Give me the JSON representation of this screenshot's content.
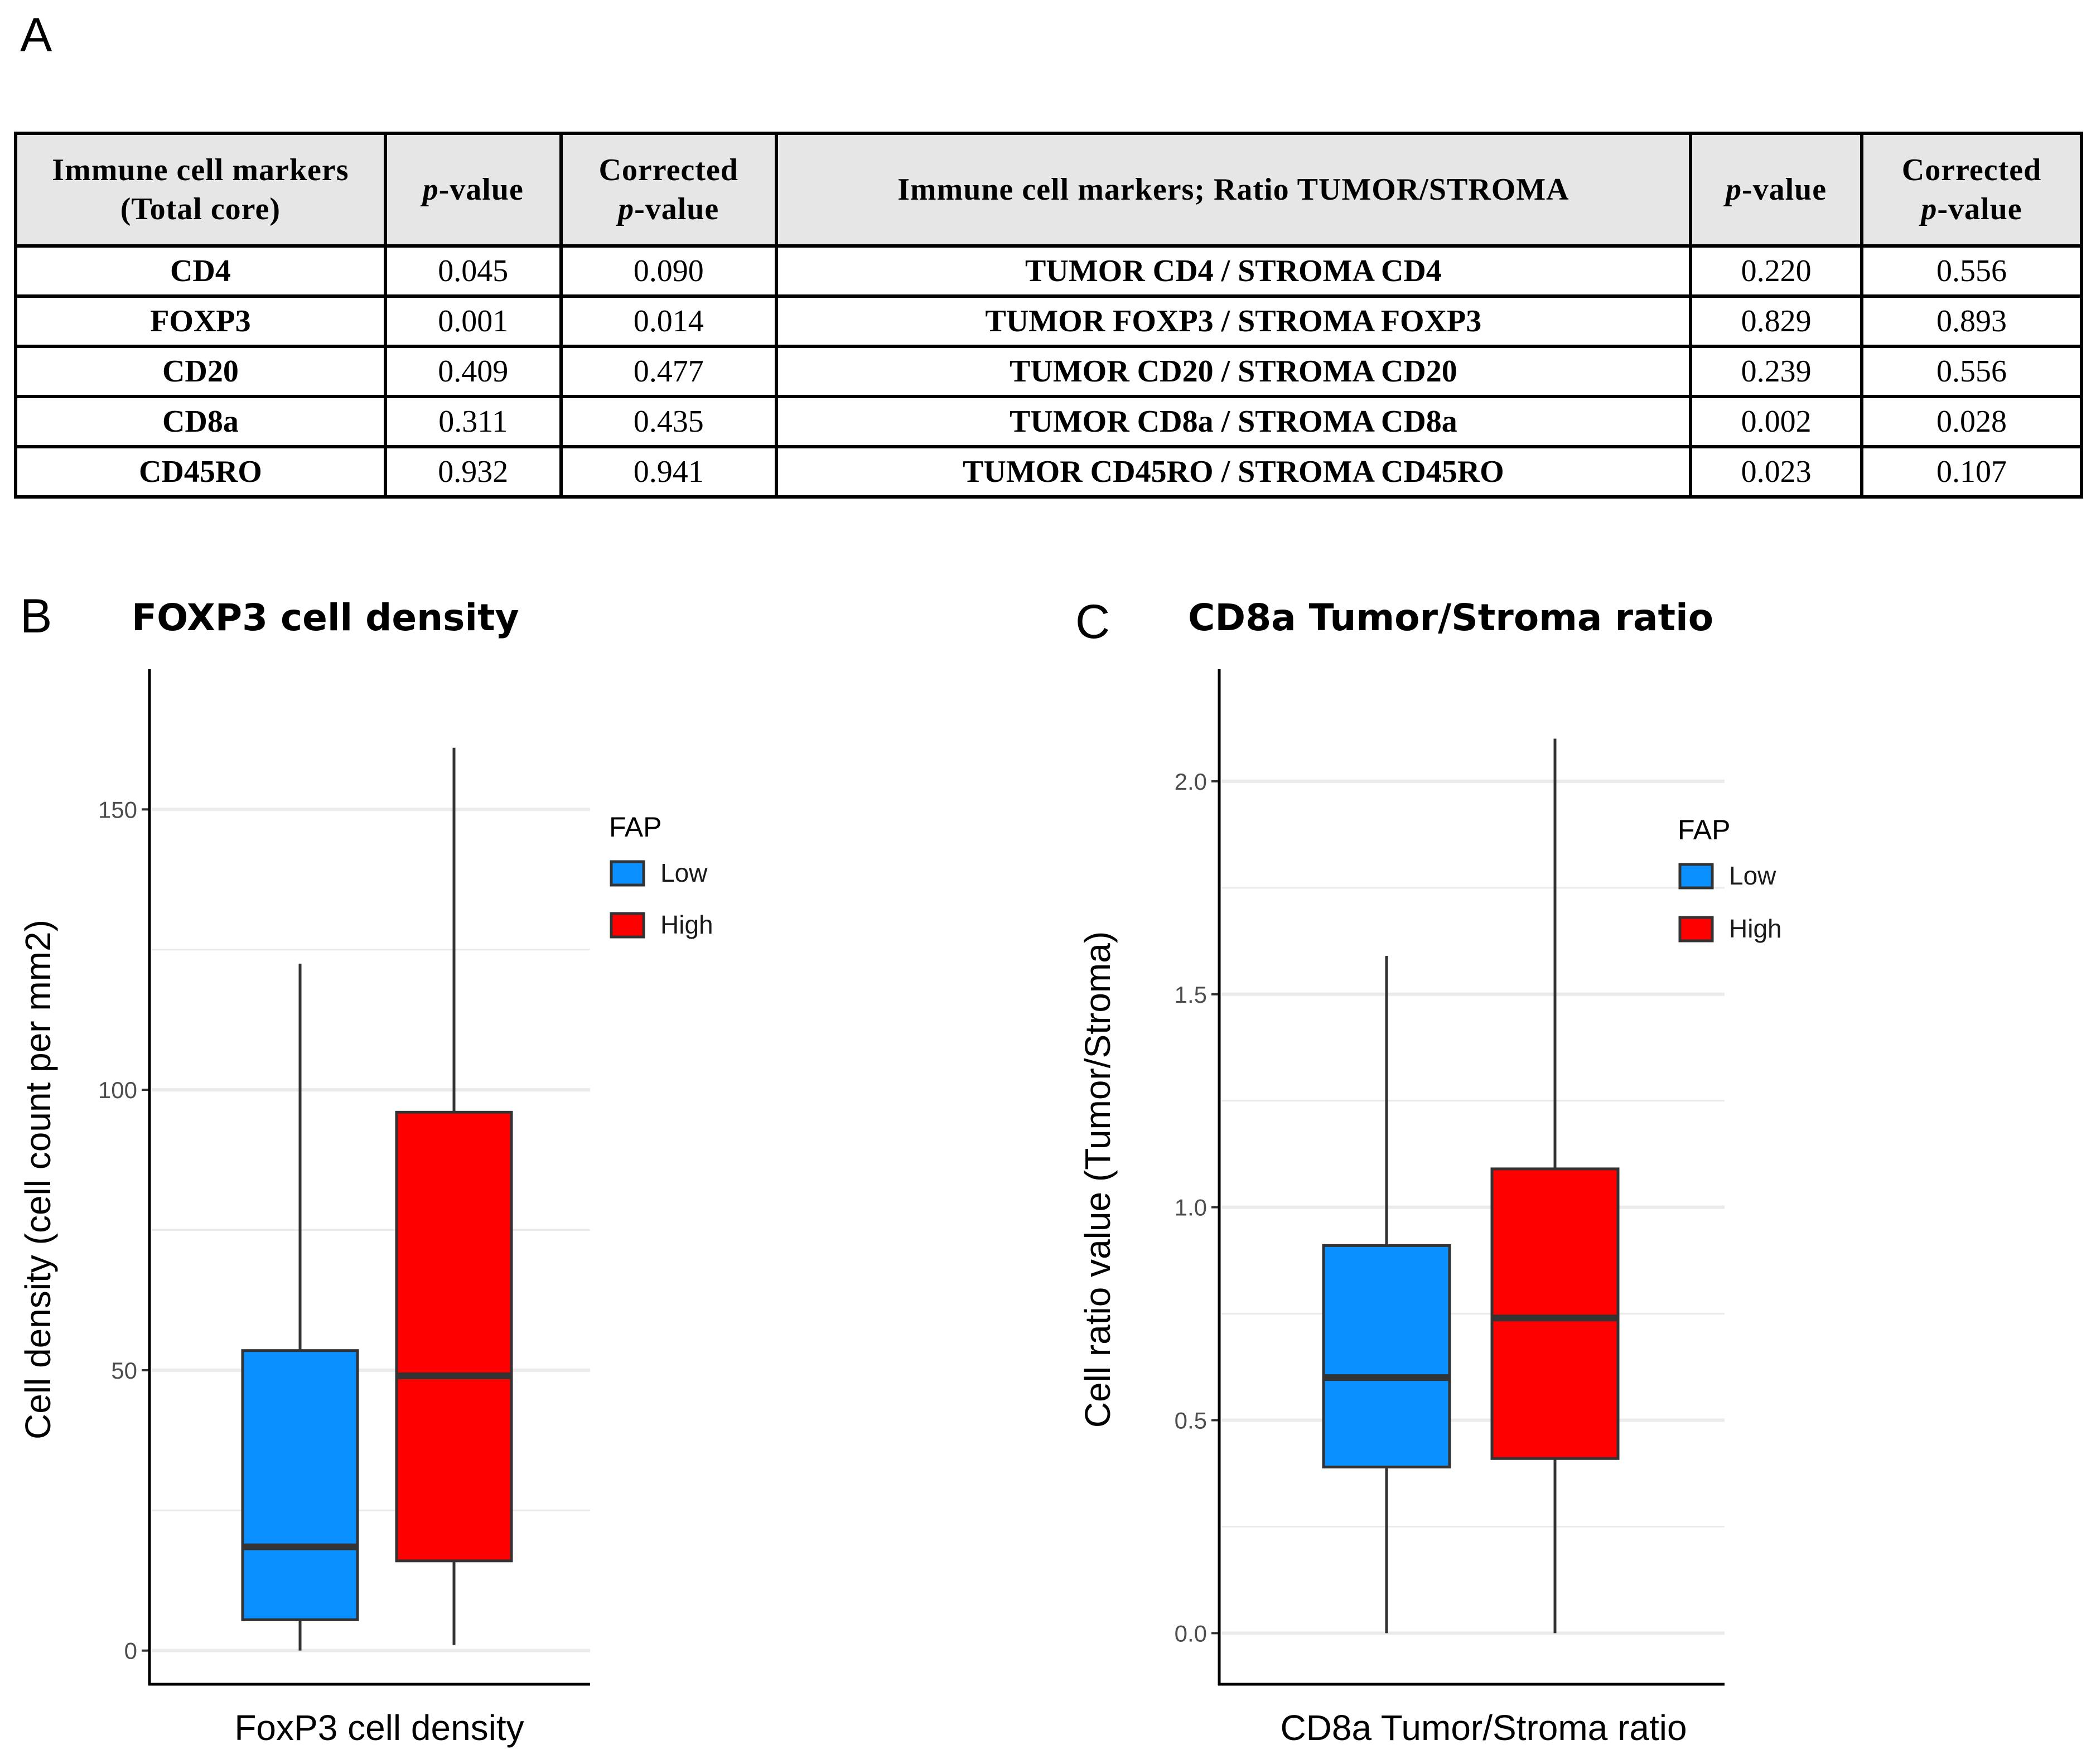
{
  "panels": {
    "a": "A",
    "b": "B",
    "c": "C"
  },
  "table": {
    "headers": [
      [
        "Immune cell markers",
        "(Total core)"
      ],
      [
        "p",
        "-value"
      ],
      [
        "Corrected",
        "p",
        "-value"
      ],
      [
        "Immune cell markers; Ratio TUMOR/STROMA"
      ],
      [
        "p",
        "-value"
      ],
      [
        "Corrected",
        "p",
        "-value"
      ]
    ],
    "rows": [
      [
        "CD4",
        "0.045",
        "0.090",
        "TUMOR CD4 / STROMA CD4",
        "0.220",
        "0.556"
      ],
      [
        "FOXP3",
        "0.001",
        "0.014",
        "TUMOR FOXP3 / STROMA FOXP3",
        "0.829",
        "0.893"
      ],
      [
        "CD20",
        "0.409",
        "0.477",
        "TUMOR CD20 / STROMA CD20",
        "0.239",
        "0.556"
      ],
      [
        "CD8a",
        "0.311",
        "0.435",
        "TUMOR CD8a / STROMA CD8a",
        "0.002",
        "0.028"
      ],
      [
        "CD45RO",
        "0.932",
        "0.941",
        "TUMOR CD45RO / STROMA CD45RO",
        "0.023",
        "0.107"
      ]
    ]
  },
  "colors": {
    "low": "#0b90ff",
    "high": "#ff0000",
    "grid": "#ebebeb",
    "line": "#333333"
  },
  "chart_data": [
    {
      "type": "boxplot",
      "title": "FOXP3 cell density",
      "xlabel": "FoxP3 cell density",
      "ylabel": "Cell density (cell count per mm2)",
      "ylim": [
        -6,
        174
      ],
      "yticks": [
        0,
        50,
        100,
        150
      ],
      "ytick_labels": [
        "0",
        "50",
        "100",
        "150"
      ],
      "minor_grid": [
        25,
        75,
        125
      ],
      "legend": {
        "title": "FAP",
        "entries": [
          "Low",
          "High"
        ],
        "position": "right"
      },
      "series": [
        {
          "name": "Low",
          "color_key": "low",
          "min": 0,
          "q1": 5.5,
          "median": 18.5,
          "q3": 53.5,
          "max": 122.5
        },
        {
          "name": "High",
          "color_key": "high",
          "min": 1,
          "q1": 16,
          "median": 49,
          "q3": 96,
          "max": 161
        }
      ]
    },
    {
      "type": "boxplot",
      "title": "CD8a Tumor/Stroma ratio",
      "xlabel": "CD8a Tumor/Stroma ratio",
      "ylabel": "Cell ratio value (Tumor/Stroma)",
      "ylim": [
        -0.12,
        2.25
      ],
      "yticks": [
        0,
        0.5,
        1.0,
        1.5,
        2.0
      ],
      "ytick_labels": [
        "0.0",
        "0.5",
        "1.0",
        "1.5",
        "2.0"
      ],
      "minor_grid": [
        0.25,
        0.75,
        1.25,
        1.75
      ],
      "legend": {
        "title": "FAP",
        "entries": [
          "Low",
          "High"
        ],
        "position": "right"
      },
      "series": [
        {
          "name": "Low",
          "color_key": "low",
          "min": 0,
          "q1": 0.39,
          "median": 0.6,
          "q3": 0.91,
          "max": 1.59
        },
        {
          "name": "High",
          "color_key": "high",
          "min": 0,
          "q1": 0.41,
          "median": 0.74,
          "q3": 1.09,
          "max": 2.1
        }
      ]
    }
  ]
}
